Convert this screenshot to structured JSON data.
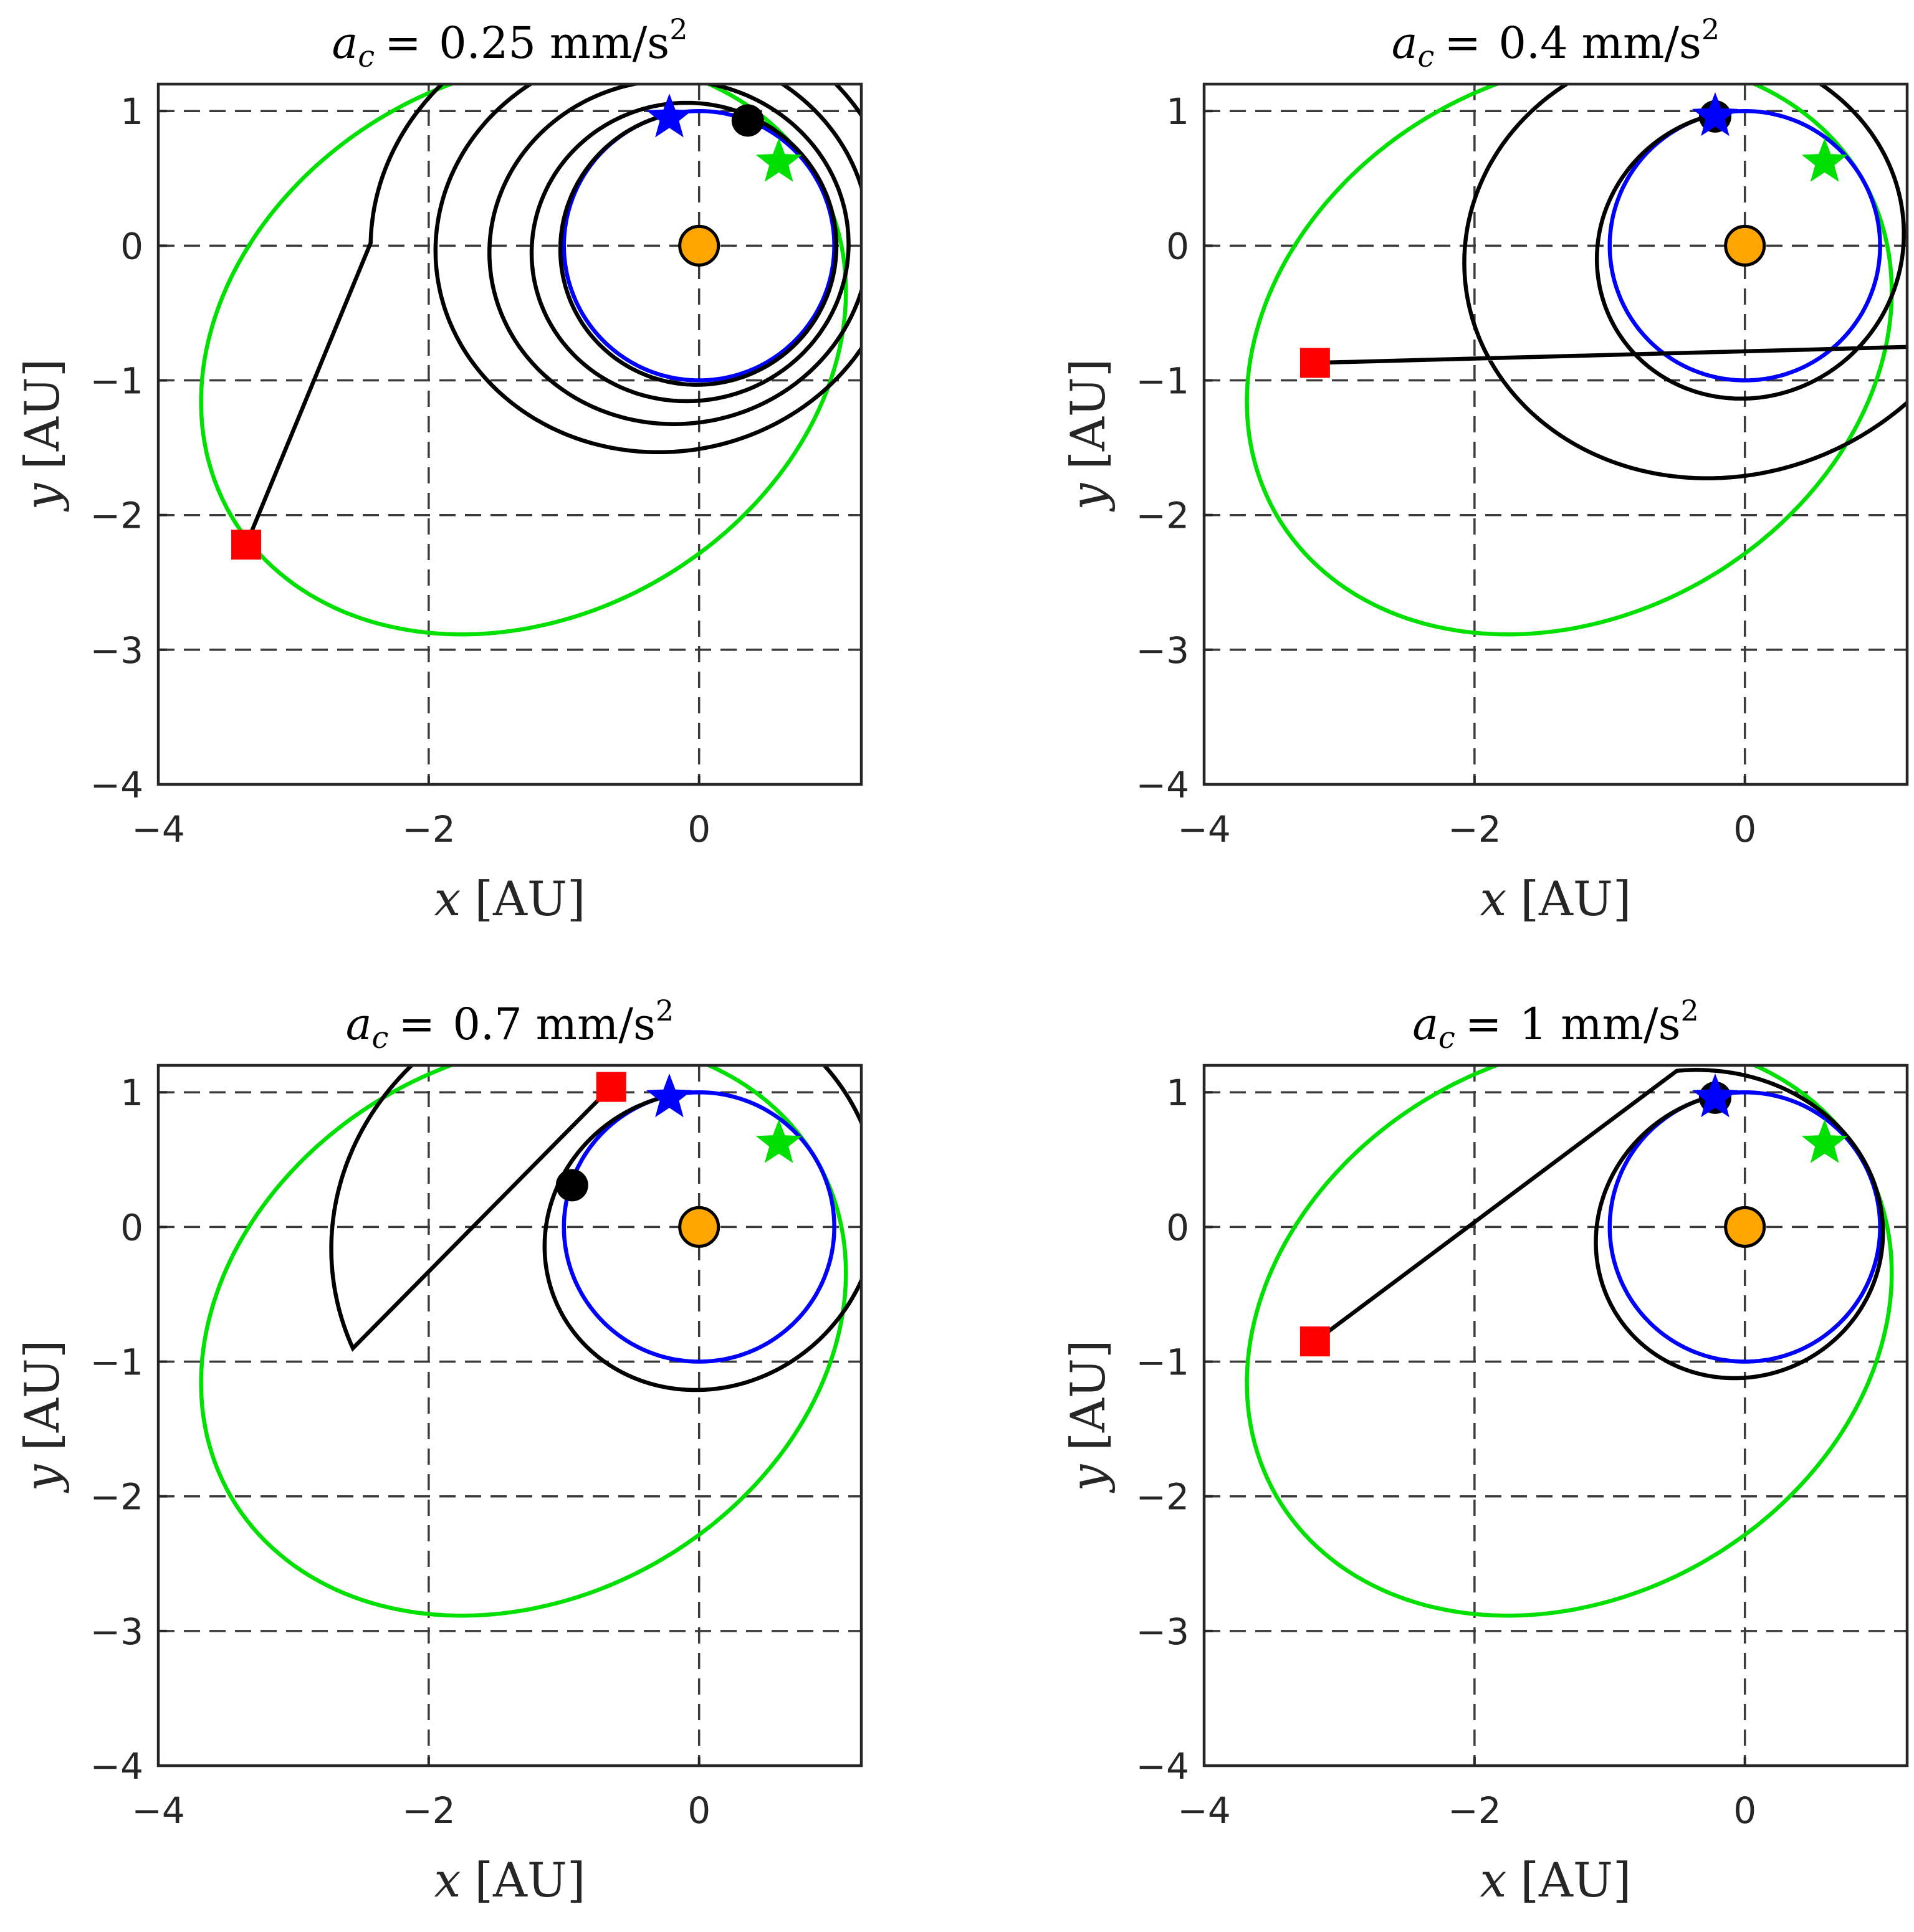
{
  "figure": {
    "xlabel_var": "x",
    "ylabel_var": "y",
    "unit": "[AU]"
  },
  "colors": {
    "earth_orbit": "#0000ff",
    "target_orbit": "#00e000",
    "trajectory": "#000000",
    "sun": "#ffa500",
    "arrival_marker": "#ff0000",
    "departure_star": "#0000ff",
    "target_star": "#00e000"
  },
  "chart_data": [
    {
      "type": "line",
      "title_var": "a",
      "title_sub": "c",
      "title_eq": "= ",
      "title_value": "0.25",
      "title_unit": "mm/s",
      "title_exp": "2",
      "xlim": [
        -4,
        1.2
      ],
      "ylim": [
        -4,
        1.2
      ],
      "xticks": [
        -4,
        -2,
        0
      ],
      "yticks": [
        1,
        0,
        -1,
        -2,
        -3,
        -4
      ],
      "xtick_labels": [
        "−4",
        "−2",
        "0"
      ],
      "ytick_labels": [
        "1",
        "0",
        "−1",
        "−2",
        "−3",
        "−4"
      ],
      "grid": true,
      "orbits": {
        "earth": {
          "a": 1.0,
          "e": 0.0,
          "omega_deg": 0
        },
        "target": {
          "a": 2.5,
          "e": 0.6,
          "omega_deg": 30
        }
      },
      "spiral": {
        "start_angle_deg": 105,
        "end_angle_deg": 1615,
        "r0": 1.0,
        "r_growth": 0.78,
        "ecc": 0.12
      },
      "departure_star": [
        -0.22,
        0.95
      ],
      "target_star": [
        0.59,
        0.62
      ],
      "arrival_square": [
        -3.35,
        -2.22
      ],
      "spacecraft_dot": [
        0.36,
        0.93
      ],
      "sun": [
        0,
        0
      ]
    },
    {
      "type": "line",
      "title_var": "a",
      "title_sub": "c",
      "title_eq": "= ",
      "title_value": "0.4",
      "title_unit": "mm/s",
      "title_exp": "2",
      "xlim": [
        -4,
        1.2
      ],
      "ylim": [
        -4,
        1.2
      ],
      "xticks": [
        -4,
        -2,
        0
      ],
      "yticks": [
        1,
        0,
        -1,
        -2,
        -3,
        -4
      ],
      "xtick_labels": [
        "−4",
        "−2",
        "0"
      ],
      "ytick_labels": [
        "1",
        "0",
        "−1",
        "−2",
        "−3",
        "−4"
      ],
      "grid": true,
      "orbits": {
        "earth": {
          "a": 1.0,
          "e": 0.0,
          "omega_deg": 0
        },
        "target": {
          "a": 2.5,
          "e": 0.6,
          "omega_deg": 30
        }
      },
      "spiral": {
        "start_angle_deg": 105,
        "end_angle_deg": 700,
        "r0": 1.0,
        "r_growth": 1.02,
        "ecc": 0.12
      },
      "departure_star": [
        -0.22,
        0.96
      ],
      "target_star": [
        0.59,
        0.62
      ],
      "arrival_square": [
        -3.18,
        -0.87
      ],
      "spacecraft_dot": [
        -0.22,
        0.96
      ],
      "sun": [
        0,
        0
      ]
    },
    {
      "type": "line",
      "title_var": "a",
      "title_sub": "c",
      "title_eq": "= ",
      "title_value": "0.7",
      "title_unit": "mm/s",
      "title_exp": "2",
      "xlim": [
        -4,
        1.2
      ],
      "ylim": [
        -4,
        1.2
      ],
      "xticks": [
        -4,
        -2,
        0
      ],
      "yticks": [
        1,
        0,
        -1,
        -2,
        -3,
        -4
      ],
      "xtick_labels": [
        "−4",
        "−2",
        "0"
      ],
      "ytick_labels": [
        "1",
        "0",
        "−1",
        "−2",
        "−3",
        "−4"
      ],
      "grid": true,
      "orbits": {
        "earth": {
          "a": 1.0,
          "e": 0.0,
          "omega_deg": 0
        },
        "target": {
          "a": 2.5,
          "e": 0.6,
          "omega_deg": 30
        }
      },
      "spiral": {
        "start_angle_deg": 105,
        "end_angle_deg": 560,
        "r0": 1.0,
        "r_growth": 1.1,
        "ecc": 0.12
      },
      "departure_star": [
        -0.22,
        0.96
      ],
      "target_star": [
        0.59,
        0.62
      ],
      "arrival_square": [
        -0.65,
        1.04
      ],
      "spacecraft_dot": [
        -0.94,
        0.31
      ],
      "sun": [
        0,
        0
      ]
    },
    {
      "type": "line",
      "title_var": "a",
      "title_sub": "c",
      "title_eq": "= ",
      "title_value": "1",
      "title_unit": "mm/s",
      "title_exp": "2",
      "xlim": [
        -4,
        1.2
      ],
      "ylim": [
        -4,
        1.2
      ],
      "xticks": [
        -4,
        -2,
        0
      ],
      "yticks": [
        1,
        0,
        -1,
        -2,
        -3,
        -4
      ],
      "xtick_labels": [
        "−4",
        "−2",
        "0"
      ],
      "ytick_labels": [
        "1",
        "0",
        "−1",
        "−2",
        "−3",
        "−4"
      ],
      "grid": true,
      "orbits": {
        "earth": {
          "a": 1.0,
          "e": 0.0,
          "omega_deg": 0
        },
        "target": {
          "a": 2.5,
          "e": 0.6,
          "omega_deg": 30
        }
      },
      "spiral": {
        "start_angle_deg": 105,
        "end_angle_deg": 460,
        "r0": 1.0,
        "r_growth": 0.25,
        "ecc": 0.1
      },
      "departure_star": [
        -0.22,
        0.96
      ],
      "target_star": [
        0.59,
        0.62
      ],
      "arrival_square": [
        -3.18,
        -0.85
      ],
      "spacecraft_dot": [
        -0.22,
        0.96
      ],
      "sun": [
        0,
        0
      ]
    }
  ]
}
